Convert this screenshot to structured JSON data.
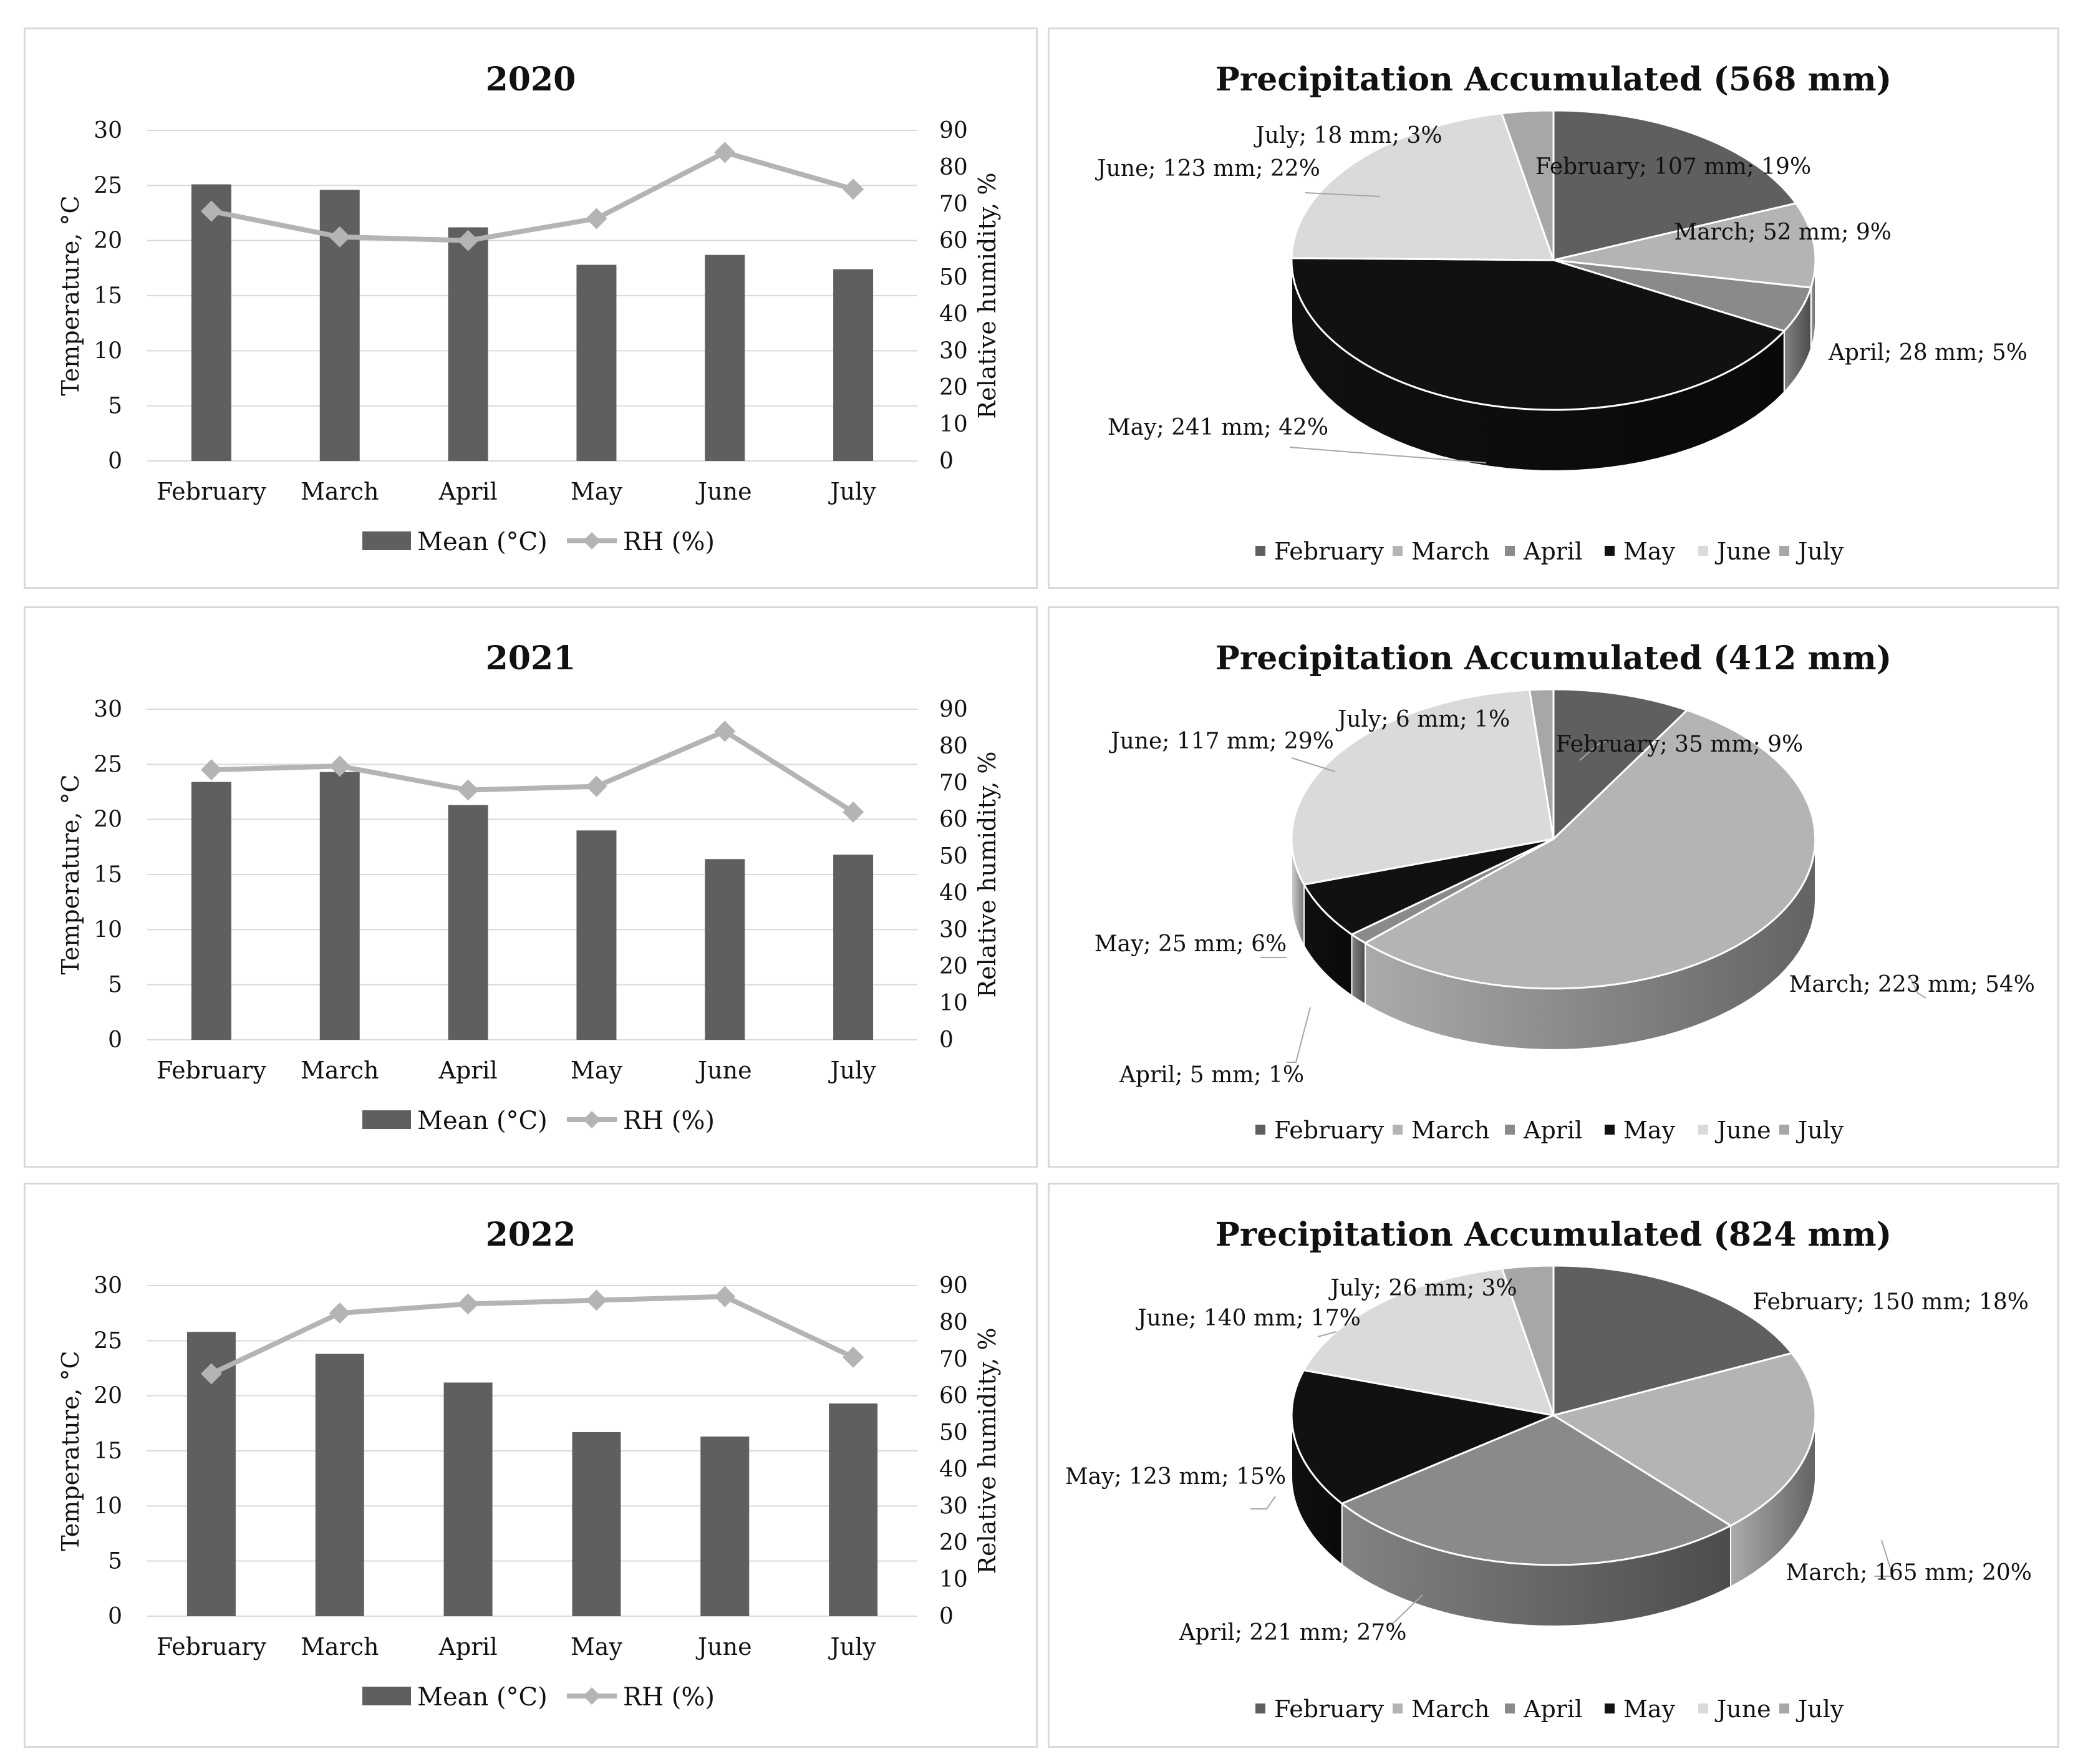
{
  "chart_data": [
    {
      "type": "bar",
      "title": "2020",
      "categories": [
        "February",
        "March",
        "April",
        "May",
        "June",
        "July"
      ],
      "ylabel": "Temperature, °C",
      "ylim": [
        0,
        30
      ],
      "yticks": [
        "0",
        "5",
        "10",
        "15",
        "20",
        "25",
        "30"
      ],
      "y2label": "Relative humidity, %",
      "y2lim": [
        0,
        90
      ],
      "y2ticks": [
        "0",
        "10",
        "20",
        "30",
        "40",
        "50",
        "60",
        "70",
        "80",
        "90"
      ],
      "series": [
        {
          "name": "Mean (°C)",
          "kind": "bar",
          "axis": "left",
          "values": [
            25.1,
            24.6,
            21.2,
            17.8,
            18.7,
            17.4
          ]
        },
        {
          "name": "RH (%)",
          "kind": "line",
          "axis": "right",
          "values": [
            68,
            61,
            60,
            66,
            84,
            74
          ]
        }
      ],
      "legend": "bottom"
    },
    {
      "type": "pie",
      "title": "Precipitation Accumulated (568 mm)",
      "labels": [
        "February",
        "March",
        "April",
        "May",
        "June",
        "July"
      ],
      "values": [
        107,
        52,
        28,
        241,
        123,
        18
      ],
      "percents": [
        19,
        9,
        5,
        42,
        22,
        3
      ],
      "data_labels": [
        "February; 107 mm; 19%",
        "March; 52 mm; 9%",
        "April; 28 mm; 5%",
        "May; 241 mm; 42%",
        "June; 123 mm; 22%",
        "July; 18 mm; 3%"
      ],
      "legend": "bottom"
    },
    {
      "type": "bar",
      "title": "2021",
      "categories": [
        "February",
        "March",
        "April",
        "May",
        "June",
        "July"
      ],
      "ylabel": "Temperature, °C",
      "ylim": [
        0,
        30
      ],
      "yticks": [
        "0",
        "5",
        "10",
        "15",
        "20",
        "25",
        "30"
      ],
      "y2label": "Relative humidity, %",
      "y2lim": [
        0,
        90
      ],
      "y2ticks": [
        "0",
        "10",
        "20",
        "30",
        "40",
        "50",
        "60",
        "70",
        "80",
        "90"
      ],
      "series": [
        {
          "name": "Mean (°C)",
          "kind": "bar",
          "axis": "left",
          "values": [
            23.4,
            24.3,
            21.3,
            19.0,
            16.4,
            16.8
          ]
        },
        {
          "name": "RH (%)",
          "kind": "line",
          "axis": "right",
          "values": [
            73.5,
            74.5,
            68,
            69,
            84,
            62
          ]
        }
      ],
      "legend": "bottom"
    },
    {
      "type": "pie",
      "title": "Precipitation Accumulated (412 mm)",
      "labels": [
        "February",
        "March",
        "April",
        "May",
        "June",
        "July"
      ],
      "values": [
        35,
        223,
        5,
        25,
        117,
        6
      ],
      "percents": [
        9,
        54,
        1,
        6,
        29,
        1
      ],
      "data_labels": [
        "February; 35 mm; 9%",
        "March; 223 mm; 54%",
        "April; 5 mm; 1%",
        "May; 25 mm; 6%",
        "June; 117 mm; 29%",
        "July; 6 mm; 1%"
      ],
      "legend": "bottom"
    },
    {
      "type": "bar",
      "title": "2022",
      "categories": [
        "February",
        "March",
        "April",
        "May",
        "June",
        "July"
      ],
      "ylabel": "Temperature, °C",
      "ylim": [
        0,
        30
      ],
      "yticks": [
        "0",
        "5",
        "10",
        "15",
        "20",
        "25",
        "30"
      ],
      "y2label": "Relative humidity, %",
      "y2lim": [
        0,
        90
      ],
      "y2ticks": [
        "0",
        "10",
        "20",
        "30",
        "40",
        "50",
        "60",
        "70",
        "80",
        "90"
      ],
      "series": [
        {
          "name": "Mean (°C)",
          "kind": "bar",
          "axis": "left",
          "values": [
            25.8,
            23.8,
            21.2,
            16.7,
            16.3,
            19.3
          ]
        },
        {
          "name": "RH (%)",
          "kind": "line",
          "axis": "right",
          "values": [
            66,
            82.5,
            85,
            86,
            87,
            70.5
          ]
        }
      ],
      "legend": "bottom"
    },
    {
      "type": "pie",
      "title": "Precipitation Accumulated (824 mm)",
      "labels": [
        "February",
        "March",
        "April",
        "May",
        "June",
        "July"
      ],
      "values": [
        150,
        165,
        221,
        123,
        140,
        26
      ],
      "percents": [
        18,
        20,
        27,
        15,
        17,
        3
      ],
      "data_labels": [
        "February; 150 mm; 18%",
        "March; 165 mm; 20%",
        "April; 221 mm; 27%",
        "May; 123 mm; 15%",
        "June; 140 mm; 17%",
        "July; 26 mm; 3%"
      ],
      "legend": "bottom"
    }
  ],
  "colors": {
    "bar": "#5f5f5f",
    "line": "#b4b4b4",
    "grid": "#d9d9d9",
    "panel_border": "#d9d9d9",
    "text": "#111111",
    "pie": [
      "#5f5f5f",
      "#b4b4b4",
      "#8a8a8a",
      "#111111",
      "#dadada",
      "#a7a7a7"
    ]
  }
}
